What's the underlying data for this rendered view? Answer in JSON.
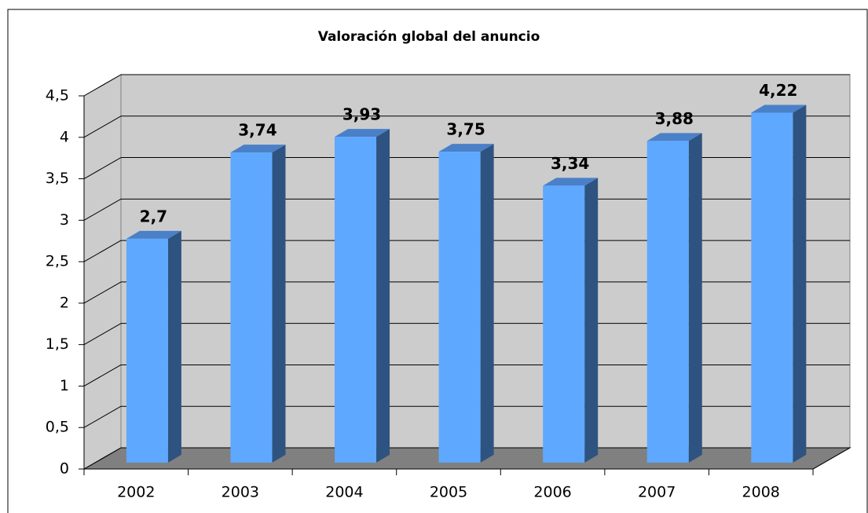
{
  "chart_data": {
    "type": "bar3d",
    "title": "Valoración global del anuncio",
    "categories": [
      "2002",
      "2003",
      "2004",
      "2005",
      "2006",
      "2007",
      "2008"
    ],
    "values": [
      2.7,
      3.74,
      3.93,
      3.75,
      3.34,
      3.88,
      4.22
    ],
    "value_labels": [
      "2,7",
      "3,74",
      "3,93",
      "3,75",
      "3,34",
      "3,88",
      "4,22"
    ],
    "color": "#5fa8ff",
    "ylim": [
      0,
      4.5
    ],
    "yticks": [
      0,
      {
        "value": 0.5,
        "label": "0,5"
      },
      1,
      {
        "value": 1.5,
        "label": "1,5"
      },
      2,
      {
        "value": 2.5,
        "label": "2,5"
      },
      3,
      {
        "value": 3.5,
        "label": "3,5"
      },
      4,
      {
        "value": 4.5,
        "label": "4,5"
      }
    ],
    "grid": true
  }
}
